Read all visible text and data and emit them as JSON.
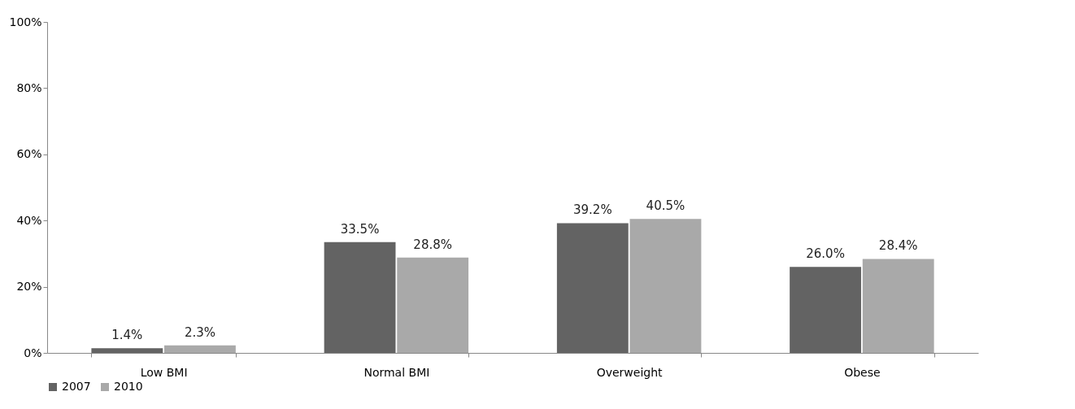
{
  "chart_data": {
    "type": "bar",
    "categories": [
      "Low BMI",
      "Normal BMI",
      "Overweight",
      "Obese"
    ],
    "series": [
      {
        "name": "2007",
        "color": "#636363",
        "values": [
          1.4,
          33.5,
          39.2,
          26.0
        ],
        "value_labels": [
          "1.4%",
          "33.5%",
          "39.2%",
          "26.0%"
        ]
      },
      {
        "name": "2010",
        "color": "#a9a9a9",
        "values": [
          2.3,
          28.8,
          40.5,
          28.4
        ],
        "value_labels": [
          "2.3%",
          "28.8%",
          "40.5%",
          "28.4%"
        ]
      }
    ],
    "ylim": [
      0,
      100
    ],
    "yticks": [
      {
        "value": 0,
        "label": "0%"
      },
      {
        "value": 20,
        "label": "20%"
      },
      {
        "value": 40,
        "label": "40%"
      },
      {
        "value": 60,
        "label": "60%"
      },
      {
        "value": 80,
        "label": "80%"
      },
      {
        "value": 100,
        "label": "100%"
      }
    ],
    "grid": false,
    "legend": "bottom"
  }
}
